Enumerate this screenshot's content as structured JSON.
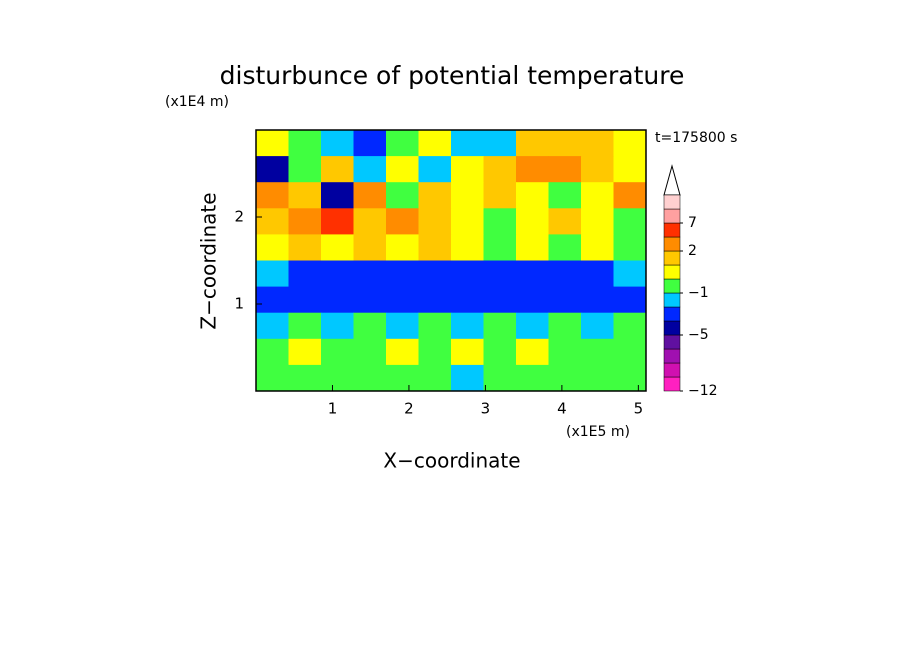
{
  "chart_data": {
    "type": "contour",
    "title": "disturbunce of potential temperature",
    "xlabel": "X−coordinate",
    "ylabel": "Z−coordinate",
    "xscale_label": "(x1E5 m)",
    "yscale_label": "(x1E4 m)",
    "annotation": "t=175800 s",
    "xlim": [
      0,
      5.1
    ],
    "ylim": [
      0,
      3.0
    ],
    "xticks": [
      1,
      2,
      3,
      4,
      5
    ],
    "yticks": [
      1,
      2
    ],
    "x": [
      0.2125,
      0.6375,
      1.0625,
      1.4875,
      1.9125,
      2.3375,
      2.7625,
      3.1875,
      3.6125,
      4.0375,
      4.4625,
      4.8875
    ],
    "y": [
      2.85,
      2.55,
      2.25,
      1.95,
      1.65,
      1.35,
      1.05,
      0.75,
      0.45,
      0.15
    ],
    "z": [
      [
        0.5,
        -0.5,
        -2,
        -3.5,
        -0.5,
        0.5,
        -2,
        -1.5,
        1.5,
        1.5,
        1.5,
        0.5
      ],
      [
        -4.5,
        -0.5,
        1.5,
        -2,
        0.5,
        -2,
        0.5,
        1.5,
        3,
        3,
        1.5,
        0.5
      ],
      [
        3,
        1.5,
        -4.5,
        3,
        -0.5,
        1.5,
        0.5,
        1.5,
        0.5,
        -0.5,
        0.5,
        3
      ],
      [
        1.5,
        3,
        5.5,
        1.5,
        3,
        1.5,
        0.5,
        -0.5,
        0.5,
        1.5,
        0.5,
        -0.5
      ],
      [
        0.5,
        1.5,
        0.5,
        1.5,
        0.5,
        1.5,
        0.5,
        -0.5,
        0.5,
        -0.5,
        0.5,
        -0.5
      ],
      [
        -2,
        -3.5,
        -3.5,
        -3.5,
        -3.5,
        -3.5,
        -3.5,
        -3.5,
        -3.5,
        -3.5,
        -3.5,
        -2
      ],
      [
        -3.5,
        -3.5,
        -3.5,
        -3.5,
        -3.5,
        -3.5,
        -3.5,
        -3.5,
        -3.5,
        -3.5,
        -3.5,
        -3.5
      ],
      [
        -2,
        -0.5,
        -2,
        -0.5,
        -2,
        -0.5,
        -2,
        -0.5,
        -2,
        -0.5,
        -2,
        -0.5
      ],
      [
        -0.5,
        0.5,
        -0.5,
        -0.5,
        0.5,
        -0.5,
        0.5,
        -0.5,
        0.5,
        -0.5,
        -0.5,
        -0.5
      ],
      [
        -0.5,
        -0.5,
        -0.5,
        -0.5,
        -0.5,
        -0.5,
        -2,
        -0.5,
        -0.5,
        -0.5,
        -0.5,
        -0.5
      ]
    ],
    "levels": [
      -12,
      -10,
      -8,
      -6,
      -5,
      -4,
      -3,
      -1,
      0,
      1,
      2,
      4,
      7,
      9,
      11
    ],
    "colors": [
      "#ff20c0",
      "#d010b0",
      "#a010b0",
      "#6010a0",
      "#0000a0",
      "#0028ff",
      "#00c8ff",
      "#40ff40",
      "#ffff00",
      "#ffc800",
      "#ff8c00",
      "#ff3000",
      "#ffa0a0",
      "#ffd0d0"
    ],
    "colorbar_ticks": [
      {
        "value": -12,
        "label": "−12"
      },
      {
        "value": -5,
        "label": "−5"
      },
      {
        "value": -1,
        "label": "−1"
      },
      2,
      7
    ]
  }
}
